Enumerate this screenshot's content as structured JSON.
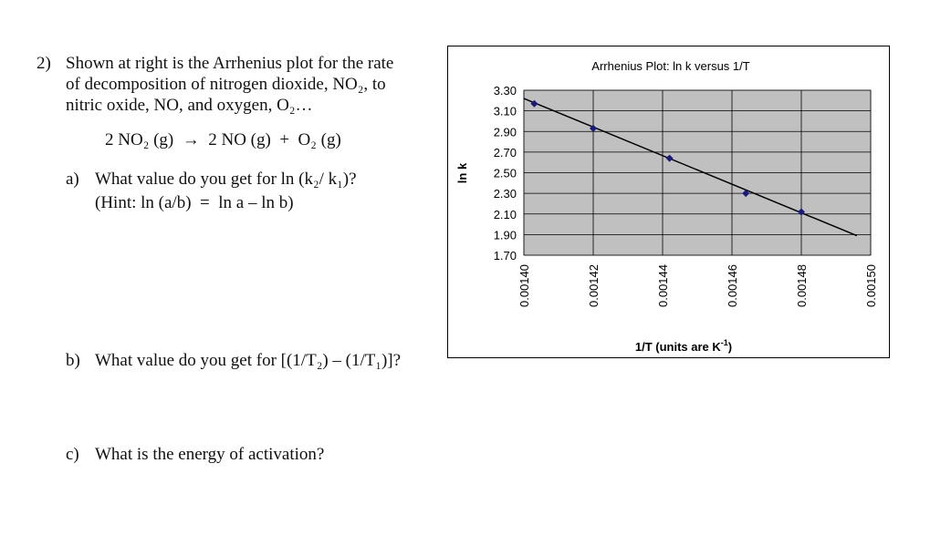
{
  "question": {
    "number": "2)",
    "intro_line1": "Shown at right is the Arrhenius plot for the rate",
    "intro_line2": "of decomposition of nitrogen dioxide, NO₂, to",
    "intro_line3": "nitric oxide, NO, and oxygen, O₂…",
    "reaction": "2 NO₂ (g)  →  2 NO (g)  +  O₂ (g)",
    "part_a_label": "a)",
    "part_a_text": "What value do you get for ln (k₂/ k₁)?",
    "part_a_hint": "(Hint: ln (a/b)  =  ln a – ln b)",
    "part_b_label": "b)",
    "part_b_text": "What value do you get for [(1/T₂) – (1/T₁)]?",
    "part_c_label": "c)",
    "part_c_text": "What is the energy of activation?"
  },
  "chart_data": {
    "type": "scatter",
    "title": "Arrhenius Plot: ln k versus 1/T",
    "xlabel": "1/T (units are K",
    "xlabel_sup": "-1",
    "xlabel_close": ")",
    "ylabel": "ln k",
    "xlim": [
      0.0014,
      0.0015
    ],
    "ylim": [
      1.7,
      3.3
    ],
    "x_ticks": [
      "0.00140",
      "0.00142",
      "0.00144",
      "0.00146",
      "0.00148",
      "0.00150"
    ],
    "y_ticks": [
      "3.30",
      "3.10",
      "2.90",
      "2.70",
      "2.50",
      "2.30",
      "2.10",
      "1.90",
      "1.70"
    ],
    "grid": true,
    "background_color": "#c0c0c0",
    "marker_color": "#1a1a7a",
    "line_color": "#000000",
    "points": [
      {
        "x": 0.001403,
        "y": 3.17
      },
      {
        "x": 0.00142,
        "y": 2.93
      },
      {
        "x": 0.001442,
        "y": 2.64
      },
      {
        "x": 0.001464,
        "y": 2.3
      },
      {
        "x": 0.00148,
        "y": 2.12
      }
    ],
    "trendline": [
      {
        "x": 0.0014,
        "y": 3.22
      },
      {
        "x": 0.001496,
        "y": 1.89
      }
    ]
  }
}
